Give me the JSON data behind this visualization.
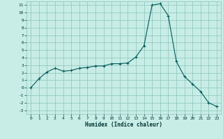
{
  "xlabel": "Humidex (Indice chaleur)",
  "ylabel": "",
  "bg_color": "#c8ede6",
  "grid_color": "#88c4bc",
  "line_color": "#005858",
  "marker_color": "#005858",
  "xlim": [
    -0.5,
    23.5
  ],
  "ylim": [
    -3.5,
    11.5
  ],
  "xticks": [
    0,
    1,
    2,
    3,
    4,
    5,
    6,
    7,
    8,
    9,
    10,
    11,
    12,
    13,
    14,
    15,
    16,
    17,
    18,
    19,
    20,
    21,
    22,
    23
  ],
  "yticks": [
    -3,
    -2,
    -1,
    0,
    1,
    2,
    3,
    4,
    5,
    6,
    7,
    8,
    9,
    10,
    11
  ],
  "x": [
    0,
    1,
    2,
    3,
    4,
    5,
    6,
    7,
    8,
    9,
    10,
    11,
    12,
    13,
    14,
    15,
    16,
    17,
    18,
    19,
    20,
    21,
    22,
    23
  ],
  "y": [
    0.0,
    1.2,
    2.1,
    2.6,
    2.2,
    2.3,
    2.6,
    2.7,
    2.9,
    2.9,
    3.2,
    3.2,
    3.3,
    4.1,
    5.6,
    11.0,
    11.2,
    9.6,
    3.5,
    1.5,
    0.5,
    -0.5,
    -2.0,
    -2.5
  ]
}
